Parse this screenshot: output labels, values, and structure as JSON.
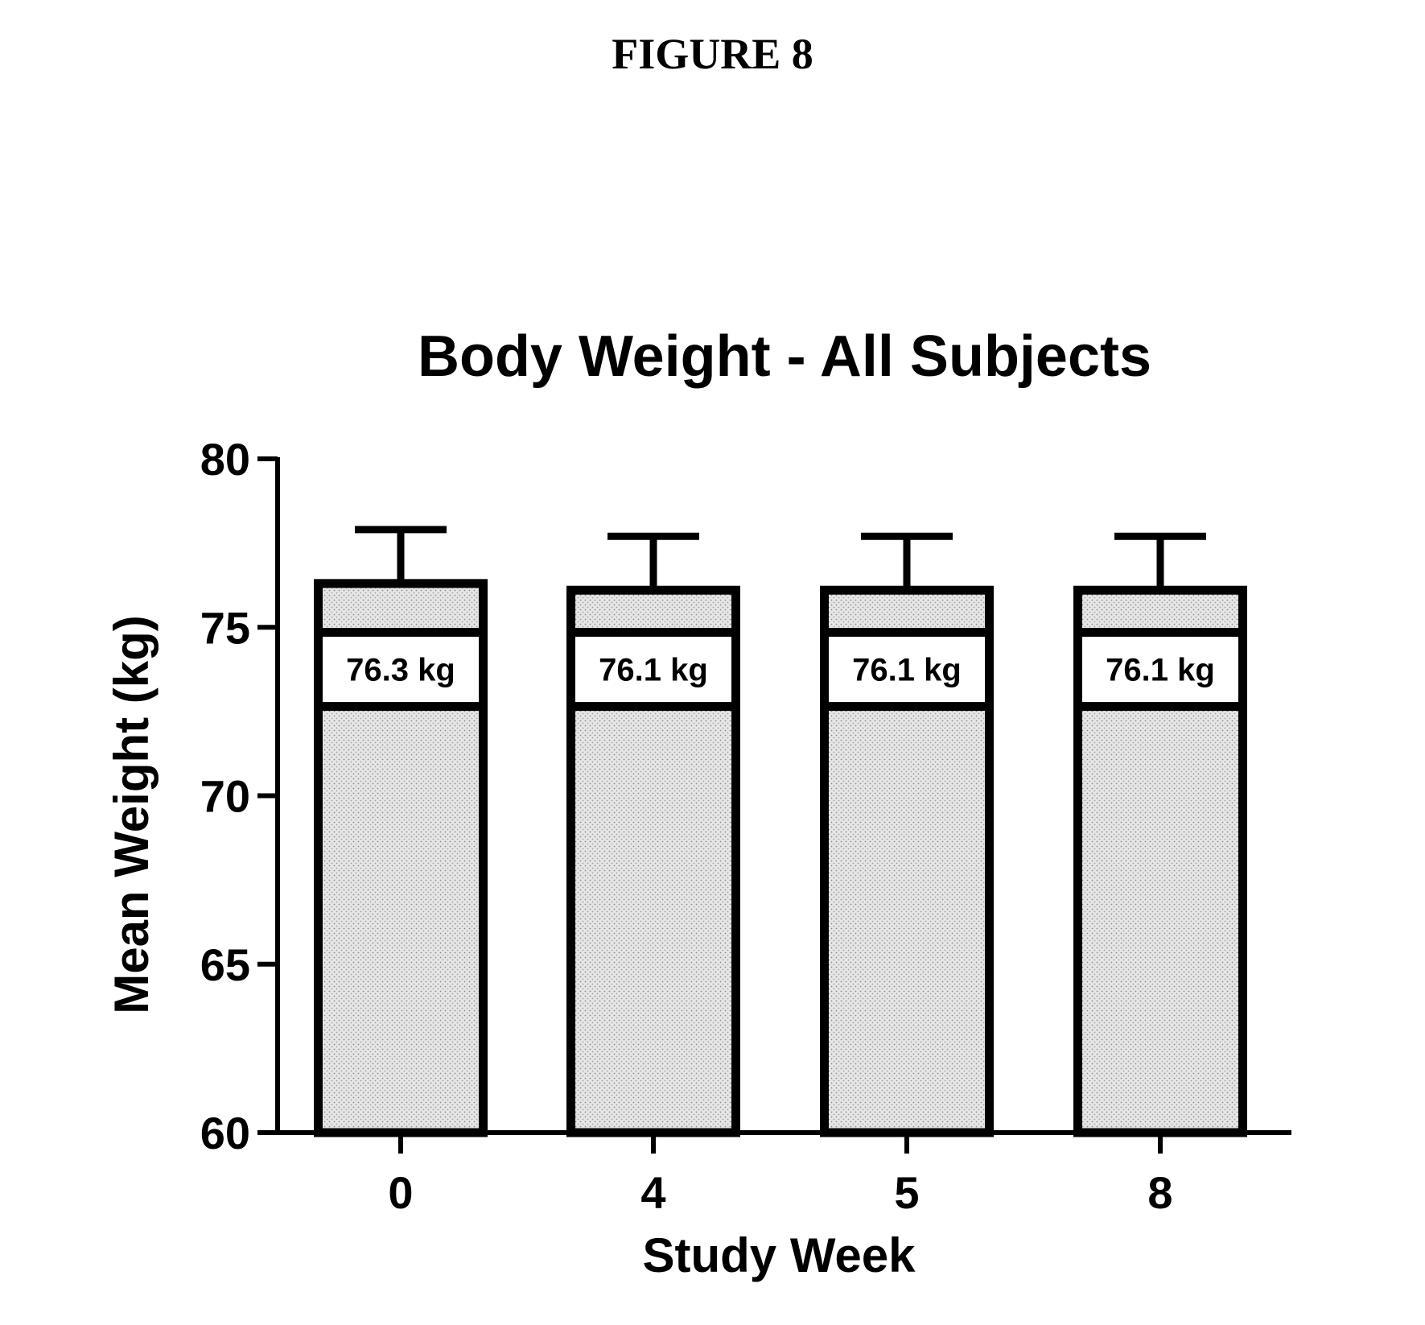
{
  "figure_label": "FIGURE 8",
  "chart_data": {
    "type": "bar",
    "title": "Body Weight - All Subjects",
    "xlabel": "Study Week",
    "ylabel": "Mean Weight (kg)",
    "categories": [
      "0",
      "4",
      "5",
      "8"
    ],
    "values": [
      76.3,
      76.1,
      76.1,
      76.1
    ],
    "error_upper": [
      77.9,
      77.7,
      77.7,
      77.7
    ],
    "bar_labels": [
      "76.3 kg",
      "76.1 kg",
      "76.1 kg",
      "76.1 kg"
    ],
    "ylim": [
      60,
      80
    ],
    "yticks": [
      "60",
      "65",
      "70",
      "75",
      "80"
    ],
    "grid": false,
    "legend": "none",
    "bar_fill": "stippled light gray"
  }
}
